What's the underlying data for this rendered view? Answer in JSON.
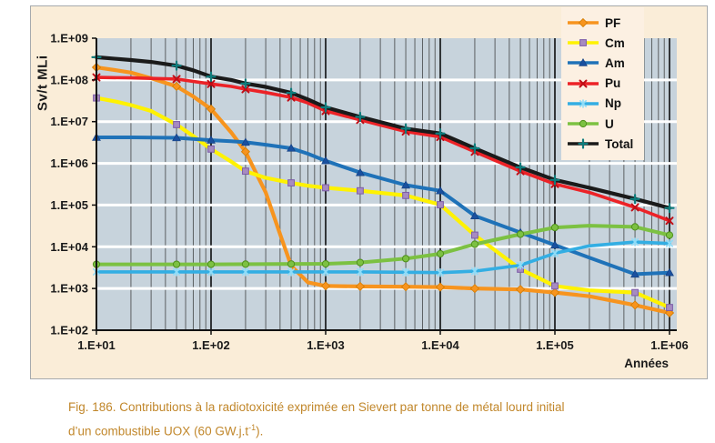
{
  "figure": {
    "y_axis_title": "Sv/t MLi",
    "x_axis_title": "Années",
    "y_tick_labels": [
      "1.E+09",
      "1.E+08",
      "1.E+07",
      "1.E+06",
      "1.E+05",
      "1.E+04",
      "1.E+03",
      "1.E+02"
    ],
    "x_tick_labels": [
      "1.E+01",
      "1.E+02",
      "1.E+03",
      "1.E+04",
      "1.E+05",
      "1.E+06"
    ]
  },
  "caption": {
    "line1": "Fig. 186. Contributions à la radiotoxicité exprimée en Sievert par tonne de métal lourd initial",
    "line2_pre": "d’un combustible UOX (60 GW.j.t",
    "line2_sup": "-1",
    "line2_post": ")."
  },
  "colors": {
    "figure_bg": "#FAEDD8",
    "legend_bg": "#FCF0E2",
    "plot_bg": "#C7D3DC",
    "grid_minor": "#5B5F61",
    "grid_major": "#17191A",
    "grid_white": "#FFFFFF",
    "axis_line": "#111111",
    "axis_text": "#1A1A1A",
    "caption_text": "#C1872B"
  },
  "chart_data": {
    "type": "line",
    "title": "",
    "xlabel": "Années",
    "ylabel": "Sv/t MLi",
    "x_scale": "log",
    "y_scale": "log",
    "xlim": [
      10,
      1000000
    ],
    "ylim": [
      100,
      1000000000
    ],
    "grid": true,
    "legend_position": "top-right",
    "marker_x": [
      10,
      50,
      100,
      200,
      500,
      1000,
      2000,
      5000,
      10000,
      20000,
      50000,
      100000,
      500000,
      1000000
    ],
    "series": [
      {
        "name": "PF",
        "color": "#F7941E",
        "width": 4.2,
        "marker": "diamond",
        "marker_fill": "#F7941E",
        "marker_stroke": "#D17A00",
        "marker_x": [
          10,
          50,
          100,
          200,
          1000,
          2000,
          5000,
          10000,
          20000,
          50000,
          100000,
          500000,
          1000000
        ],
        "x": [
          10,
          15,
          20,
          30,
          50,
          70,
          100,
          150,
          200,
          300,
          400,
          500,
          700,
          1000,
          2000,
          5000,
          10000,
          20000,
          50000,
          100000,
          200000,
          500000,
          1000000
        ],
        "values": [
          200000000.0,
          170000000.0,
          150000000.0,
          110000000.0,
          70000000.0,
          40000000.0,
          20000000.0,
          5500000.0,
          1900000.0,
          200000.0,
          20000.0,
          3500.0,
          1400.0,
          1150.0,
          1120.0,
          1100.0,
          1080.0,
          1000.0,
          950.0,
          800.0,
          650.0,
          400.0,
          260.0
        ]
      },
      {
        "name": "Cm",
        "color": "#FFF200",
        "width": 4.2,
        "marker": "square",
        "marker_fill": "#A78BC0",
        "marker_stroke": "#7C5CA8",
        "x": [
          10,
          15,
          20,
          30,
          50,
          70,
          100,
          150,
          200,
          300,
          500,
          700,
          1000,
          2000,
          5000,
          10000,
          20000,
          50000,
          100000,
          200000,
          500000,
          1000000
        ],
        "values": [
          37000000.0,
          30000000.0,
          25000000.0,
          18000000.0,
          8500000.0,
          4500000.0,
          2200000.0,
          1100000.0,
          650000.0,
          450000.0,
          340000.0,
          290000.0,
          260000.0,
          220000.0,
          170000.0,
          102000.0,
          19000.0,
          2900.0,
          1150.0,
          900.0,
          800.0,
          350.0
        ]
      },
      {
        "name": "Am",
        "color": "#1F72B8",
        "width": 4.0,
        "marker": "triangle",
        "marker_fill": "#1A509F",
        "marker_stroke": "#113C7E",
        "x": [
          10,
          20,
          50,
          100,
          150,
          200,
          300,
          500,
          700,
          1000,
          2000,
          5000,
          10000,
          20000,
          50000,
          100000,
          200000,
          500000,
          1000000
        ],
        "values": [
          4200000.0,
          4200000.0,
          4100000.0,
          3600000.0,
          3400000.0,
          3200000.0,
          2800000.0,
          2300000.0,
          1700000.0,
          1150000.0,
          600000.0,
          300000.0,
          220000.0,
          55000.0,
          22000.0,
          11000.0,
          5500.0,
          2200.0,
          2400.0
        ]
      },
      {
        "name": "Pu",
        "color": "#EC2227",
        "width": 3.6,
        "marker": "x",
        "marker_fill": "none",
        "marker_stroke": "#C00D16",
        "x": [
          10,
          20,
          50,
          100,
          150,
          200,
          300,
          500,
          700,
          1000,
          2000,
          5000,
          10000,
          20000,
          50000,
          100000,
          200000,
          500000,
          1000000
        ],
        "values": [
          115000000.0,
          112000000.0,
          105000000.0,
          80000000.0,
          70000000.0,
          60000000.0,
          50000000.0,
          38000000.0,
          28000000.0,
          18000000.0,
          11000000.0,
          5800000.0,
          4300000.0,
          1900000.0,
          650000.0,
          320000.0,
          200000.0,
          88000.0,
          42000.0
        ]
      },
      {
        "name": "Np",
        "color": "#33AEE3",
        "width": 3.6,
        "marker": "asterisk",
        "marker_fill": "none",
        "marker_stroke": "#8FDCF8",
        "x": [
          10,
          100,
          1000,
          2000,
          5000,
          10000,
          20000,
          50000,
          100000,
          200000,
          500000,
          1000000
        ],
        "values": [
          2500.0,
          2500.0,
          2500.0,
          2500.0,
          2450.0,
          2400.0,
          2600.0,
          3600.0,
          7000.0,
          10500.0,
          13000.0,
          12000.0
        ]
      },
      {
        "name": "U",
        "color": "#7CC142",
        "width": 4.0,
        "marker": "circle",
        "marker_fill": "#7CC142",
        "marker_stroke": "#4F8F1D",
        "x": [
          10,
          100,
          1000,
          2000,
          5000,
          10000,
          20000,
          50000,
          100000,
          200000,
          500000,
          1000000
        ],
        "values": [
          3800.0,
          3800.0,
          3900.0,
          4200.0,
          5200.0,
          6800.0,
          11500.0,
          20000.0,
          29000.0,
          32000.0,
          30000.0,
          19000.0
        ]
      },
      {
        "name": "Total",
        "color": "#1A1A1A",
        "width": 4.2,
        "marker": "plus",
        "marker_fill": "none",
        "marker_stroke": "#0E7D7D",
        "x": [
          10,
          15,
          20,
          30,
          50,
          70,
          100,
          150,
          200,
          300,
          500,
          700,
          1000,
          2000,
          5000,
          10000,
          20000,
          50000,
          100000,
          200000,
          500000,
          1000000
        ],
        "values": [
          350000000.0,
          320000000.0,
          300000000.0,
          270000000.0,
          220000000.0,
          170000000.0,
          120000000.0,
          100000000.0,
          82000000.0,
          68000000.0,
          49000000.0,
          34000000.0,
          22000000.0,
          13000000.0,
          6800000.0,
          5200000.0,
          2300000.0,
          800000.0,
          400000.0,
          260000.0,
          140000.0,
          85000.0
        ]
      }
    ]
  }
}
